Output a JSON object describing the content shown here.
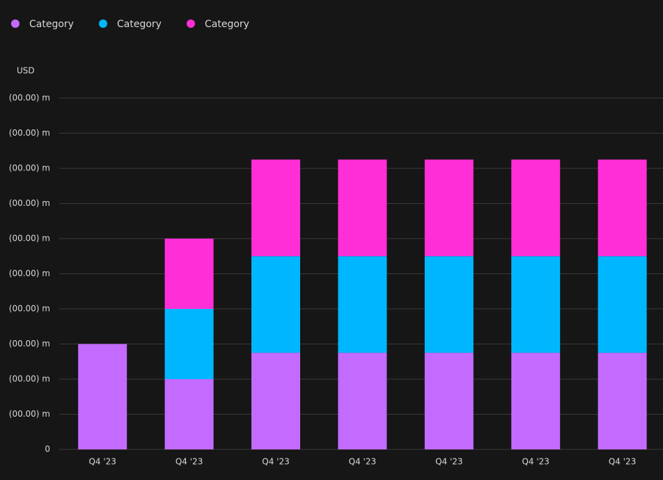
{
  "chart_data": {
    "type": "stacked_bar",
    "y_label": "USD",
    "categories": [
      "Q4 '23",
      "Q4 '23",
      "Q4 '23",
      "Q4 '23",
      "Q4 '23",
      "Q4 '23",
      "Q4 '23"
    ],
    "series": [
      {
        "name": "Category",
        "color": "#c36bff",
        "values": [
          3,
          2,
          2.75,
          2.75,
          2.75,
          2.75,
          2.75
        ]
      },
      {
        "name": "Category",
        "color": "#00b7ff",
        "values": [
          0,
          2,
          2.75,
          2.75,
          2.75,
          2.75,
          2.75
        ]
      },
      {
        "name": "Category",
        "color": "#ff2ed6",
        "values": [
          0,
          2,
          2.75,
          2.75,
          2.75,
          2.75,
          2.75
        ]
      }
    ],
    "ylim": [
      0,
      10
    ],
    "yticks": [
      0,
      {
        "value": 1,
        "label": "(00.00) m"
      },
      {
        "value": 2,
        "label": "(00.00) m"
      },
      {
        "value": 3,
        "label": "(00.00) m"
      },
      {
        "value": 4,
        "label": "(00.00) m"
      },
      {
        "value": 5,
        "label": "(00.00) m"
      },
      {
        "value": 6,
        "label": "(00.00) m"
      },
      {
        "value": 7,
        "label": "(00.00) m"
      },
      {
        "value": 8,
        "label": "(00.00) m"
      },
      {
        "value": 9,
        "label": "(00.00) m"
      },
      {
        "value": 10,
        "label": "(00.00) m"
      }
    ],
    "grid": true,
    "legend": "top-left"
  }
}
